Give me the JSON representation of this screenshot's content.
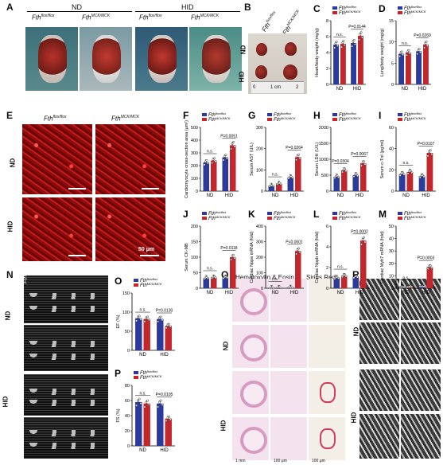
{
  "panels": {
    "A": {
      "letter": "A",
      "groups": [
        "ND",
        "HID"
      ],
      "genotypes": [
        "Fth",
        "Fth"
      ],
      "sup": [
        "flox/flox",
        "MCK/MCK"
      ]
    },
    "B": {
      "letter": "B",
      "rows": [
        "ND",
        "HID"
      ],
      "genotype1": "Fth",
      "sup1": "flox/flox",
      "genotype2": "Fth",
      "sup2": "MCK/MCK",
      "ruler": [
        "0",
        "1 cm",
        "2"
      ]
    },
    "E": {
      "letter": "E",
      "rows": [
        "ND",
        "HID"
      ],
      "scale": "50 μm"
    },
    "N": {
      "letter": "N",
      "rows": [
        "ND",
        "HID"
      ]
    },
    "Q": {
      "letter": "Q",
      "col1": "Hematoxylin & Eosin",
      "col2": "Sirius Red",
      "rows": [
        "ND",
        "HID"
      ],
      "scales": [
        "1 mm",
        "100 μm",
        "100 μm"
      ]
    },
    "R": {
      "letter": "R",
      "rows": [
        "ND",
        "HID"
      ]
    }
  },
  "legend": {
    "g1": "Fth",
    "g1_sup": "flox/flox",
    "g2": "Fth",
    "g2_sup": "MCK/MCK"
  },
  "colors": {
    "flox": "#2b3a9c",
    "mck": "#c1272d"
  },
  "chart_data": [
    {
      "id": "C",
      "type": "bar",
      "title": "",
      "ylabel": "Heart/body weight (mg/g)",
      "categories": [
        "ND",
        "HID"
      ],
      "ylim": [
        0,
        8
      ],
      "yticks": [
        0,
        2,
        4,
        6,
        8
      ],
      "series": [
        {
          "name": "Fth flox/flox",
          "values": [
            5.0,
            5.2
          ]
        },
        {
          "name": "Fth MCK/MCK",
          "values": [
            5.1,
            6.1
          ]
        }
      ],
      "annotations": [
        "n.s.",
        "P=0.0144"
      ]
    },
    {
      "id": "D",
      "type": "bar",
      "title": "",
      "ylabel": "Lung/body weight (mg/g)",
      "categories": [
        "ND",
        "HID"
      ],
      "ylim": [
        0,
        15
      ],
      "yticks": [
        0,
        5,
        10,
        15
      ],
      "series": [
        {
          "name": "Fth flox/flox",
          "values": [
            7.2,
            7.8
          ]
        },
        {
          "name": "Fth MCK/MCK",
          "values": [
            7.5,
            9.4
          ]
        }
      ],
      "annotations": [
        "n.s.",
        "P=0.0269"
      ]
    },
    {
      "id": "F",
      "type": "bar",
      "title": "",
      "ylabel": "Cardiomyocyte cross-section area (μm²)",
      "categories": [
        "ND",
        "HID"
      ],
      "ylim": [
        0,
        500
      ],
      "yticks": [
        0,
        100,
        200,
        300,
        400,
        500
      ],
      "series": [
        {
          "name": "Fth flox/flox",
          "values": [
            225,
            265
          ]
        },
        {
          "name": "Fth MCK/MCK",
          "values": [
            240,
            360
          ]
        }
      ],
      "annotations": [
        "n.s.",
        "P=0.0051"
      ]
    },
    {
      "id": "G",
      "type": "bar",
      "title": "",
      "ylabel": "Serum AST (U/L)",
      "categories": [
        "ND",
        "HID"
      ],
      "ylim": [
        0,
        300
      ],
      "yticks": [
        0,
        100,
        200,
        300
      ],
      "series": [
        {
          "name": "Fth flox/flox",
          "values": [
            25,
            65
          ]
        },
        {
          "name": "Fth MCK/MCK",
          "values": [
            35,
            160
          ]
        }
      ],
      "annotations": [
        "n.s.",
        "P=0.0264"
      ]
    },
    {
      "id": "H",
      "type": "bar",
      "title": "",
      "ylabel": "Serum LDH (U/L)",
      "categories": [
        "ND",
        "HID"
      ],
      "ylim": [
        0,
        2000
      ],
      "yticks": [
        0,
        500,
        1000,
        1500,
        2000
      ],
      "series": [
        {
          "name": "Fth flox/flox",
          "values": [
            450,
            500
          ]
        },
        {
          "name": "Fth MCK/MCK",
          "values": [
            650,
            870
          ]
        }
      ],
      "annotations": [
        "P=0.0304",
        "P=0.0067"
      ]
    },
    {
      "id": "I",
      "type": "bar",
      "title": "",
      "ylabel": "Serum c-TnI (pg/ml)",
      "categories": [
        "ND",
        "HID"
      ],
      "ylim": [
        0,
        60
      ],
      "yticks": [
        0,
        20,
        40,
        60
      ],
      "series": [
        {
          "name": "Fth flox/flox",
          "values": [
            16,
            14
          ]
        },
        {
          "name": "Fth MCK/MCK",
          "values": [
            18,
            36
          ]
        }
      ],
      "annotations": [
        "n.s.",
        "P=0.0107"
      ]
    },
    {
      "id": "J",
      "type": "bar",
      "title": "",
      "ylabel": "Serum CK-MB",
      "categories": [
        "ND",
        "HID"
      ],
      "ylim": [
        0,
        200
      ],
      "yticks": [
        0,
        50,
        100,
        150,
        200
      ],
      "series": [
        {
          "name": "Fth flox/flox",
          "values": [
            33,
            35
          ]
        },
        {
          "name": "Fth MCK/MCK",
          "values": [
            35,
            100
          ]
        }
      ],
      "annotations": [
        "n.s.",
        "P=0.0118"
      ]
    },
    {
      "id": "K",
      "type": "bar",
      "title": "",
      "ylabel": "Cardiac Nppa mRNA (fold)",
      "categories": [
        "ND",
        "HID"
      ],
      "ylim": [
        0,
        400
      ],
      "yticks": [
        0,
        100,
        200,
        300,
        400
      ],
      "series": [
        {
          "name": "Fth flox/flox",
          "values": [
            1,
            4
          ]
        },
        {
          "name": "Fth MCK/MCK",
          "values": [
            2,
            240
          ]
        }
      ],
      "annotations": [
        "n.s.",
        "P<0.0001"
      ]
    },
    {
      "id": "L",
      "type": "bar",
      "title": "",
      "ylabel": "Cardiac Nppb mRNA (fold)",
      "categories": [
        "ND",
        "HID"
      ],
      "ylim": [
        0,
        6
      ],
      "yticks": [
        0,
        2,
        4,
        6
      ],
      "series": [
        {
          "name": "Fth flox/flox",
          "values": [
            1.0,
            1.1
          ]
        },
        {
          "name": "Fth MCK/MCK",
          "values": [
            1.2,
            4.6
          ]
        }
      ],
      "annotations": [
        "n.s.",
        "P=0.0002"
      ]
    },
    {
      "id": "M",
      "type": "bar",
      "title": "",
      "ylabel": "Cardiac Myh7 mRNA (fold)",
      "categories": [
        "ND",
        "HID"
      ],
      "ylim": [
        0,
        50
      ],
      "yticks": [
        0,
        10,
        20,
        30,
        40,
        50
      ],
      "series": [
        {
          "name": "Fth flox/flox",
          "values": [
            1,
            1.5
          ]
        },
        {
          "name": "Fth MCK/MCK",
          "values": [
            1.2,
            17
          ]
        }
      ],
      "annotations": [
        "n.s.",
        "P=0.0003"
      ]
    },
    {
      "id": "O",
      "type": "bar",
      "title": "",
      "ylabel": "EF (%)",
      "categories": [
        "ND",
        "HID"
      ],
      "ylim": [
        0,
        150
      ],
      "yticks": [
        0,
        50,
        100,
        150
      ],
      "series": [
        {
          "name": "Fth flox/flox",
          "values": [
            84,
            82
          ]
        },
        {
          "name": "Fth MCK/MCK",
          "values": [
            82,
            64
          ]
        }
      ],
      "annotations": [
        "n.s.",
        "P=0.0130"
      ]
    },
    {
      "id": "P",
      "type": "bar",
      "title": "",
      "ylabel": "FS (%)",
      "categories": [
        "ND",
        "HID"
      ],
      "ylim": [
        0,
        80
      ],
      "yticks": [
        0,
        20,
        40,
        60,
        80
      ],
      "series": [
        {
          "name": "Fth flox/flox",
          "values": [
            58,
            56
          ]
        },
        {
          "name": "Fth MCK/MCK",
          "values": [
            56,
            36
          ]
        }
      ],
      "annotations": [
        "n.s.",
        "P=0.0105"
      ]
    }
  ]
}
